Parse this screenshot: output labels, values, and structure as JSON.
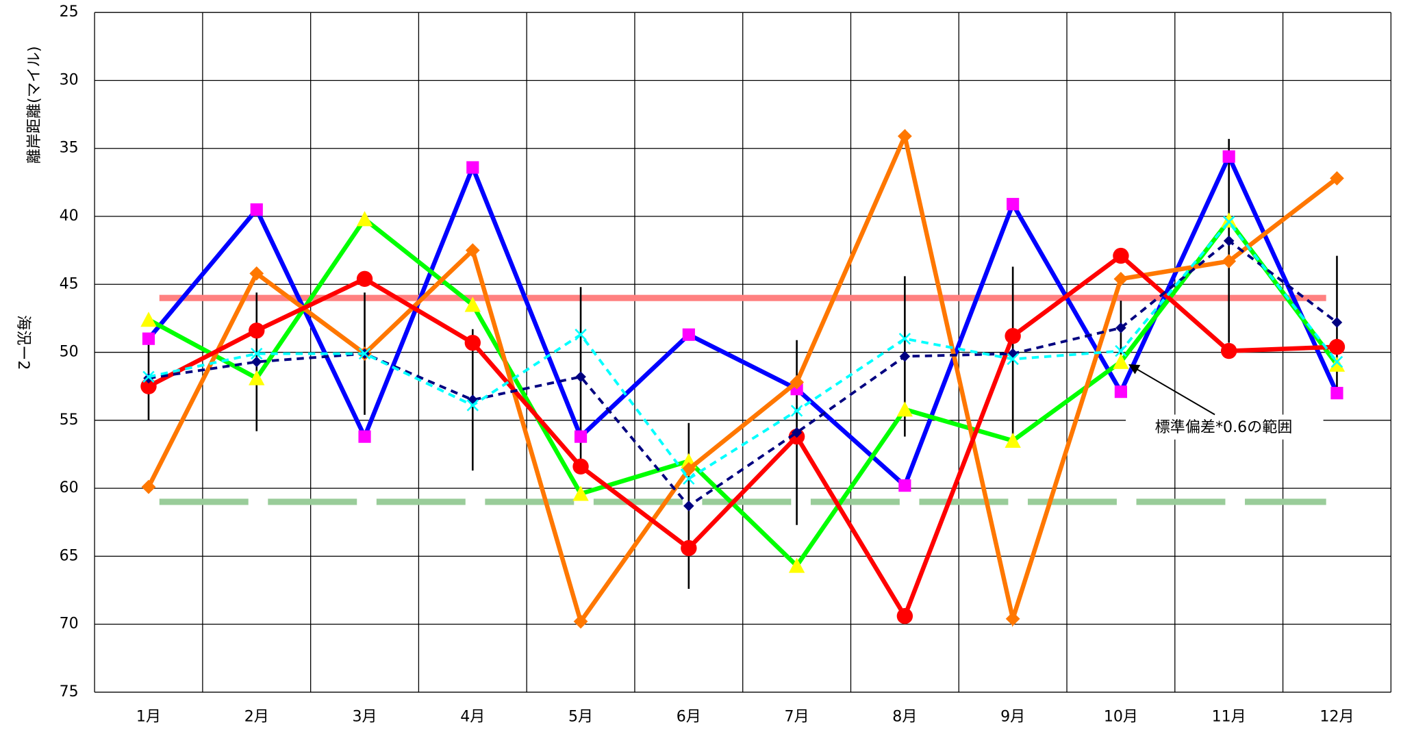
{
  "chart_data": {
    "type": "line",
    "y_label": "離岸距離(マイル)",
    "y_label_2": "海況ー2",
    "categories": [
      "1月",
      "2月",
      "3月",
      "4月",
      "5月",
      "6月",
      "7月",
      "8月",
      "9月",
      "10月",
      "11月",
      "12月"
    ],
    "ylim": [
      25,
      75
    ],
    "y_inverted": true,
    "yticks": [
      25,
      30,
      35,
      40,
      45,
      50,
      55,
      60,
      65,
      70,
      75
    ],
    "grid": true,
    "series": [
      {
        "color": "#0000ff",
        "marker": "square",
        "marker_color": "#ff00ff",
        "dash": false,
        "values": [
          49.0,
          39.5,
          56.2,
          36.4,
          56.2,
          48.7,
          52.7,
          59.8,
          39.1,
          52.9,
          35.6,
          53.0
        ]
      },
      {
        "color": "#00ff00",
        "marker": "triangle",
        "marker_color": "#ffff00",
        "dash": false,
        "values": [
          47.6,
          51.9,
          40.2,
          46.5,
          60.4,
          58.0,
          65.7,
          54.2,
          56.5,
          50.7,
          40.3,
          50.9
        ]
      },
      {
        "color": "#ff7700",
        "marker": "diamond",
        "marker_color": "#ff7700",
        "dash": false,
        "values": [
          59.9,
          44.2,
          50.1,
          42.5,
          69.8,
          58.6,
          52.2,
          34.1,
          69.6,
          44.6,
          43.3,
          37.2
        ]
      },
      {
        "color": "#ff0000",
        "marker": "circle",
        "marker_color": "#ff0000",
        "dash": false,
        "values": [
          52.5,
          48.4,
          44.6,
          49.3,
          58.4,
          64.4,
          56.2,
          69.4,
          48.8,
          42.9,
          49.9,
          49.6
        ]
      },
      {
        "color": "#000080",
        "marker": "diamond",
        "marker_color": "#000080",
        "dash": true,
        "values": [
          51.9,
          50.7,
          50.1,
          53.5,
          51.8,
          61.3,
          55.9,
          50.3,
          50.1,
          48.2,
          41.8,
          47.8
        ],
        "errors": [
          3.1,
          5.1,
          4.5,
          5.2,
          6.6,
          6.1,
          6.8,
          5.9,
          6.4,
          2.0,
          7.5,
          4.9
        ]
      },
      {
        "color": "#00ffff",
        "marker": "x",
        "marker_color": "#00ffff",
        "dash": true,
        "values": [
          51.8,
          50.1,
          50.1,
          53.9,
          48.7,
          59.3,
          54.3,
          49.0,
          50.5,
          49.9,
          40.4,
          50.7
        ]
      }
    ],
    "reference_lines": [
      {
        "value": 46.0,
        "color": "#ff8080",
        "dash": false
      },
      {
        "value": 61.0,
        "color": "#99cc99",
        "dash": true
      }
    ],
    "annotation": "標準偏差*0.6の範囲"
  }
}
